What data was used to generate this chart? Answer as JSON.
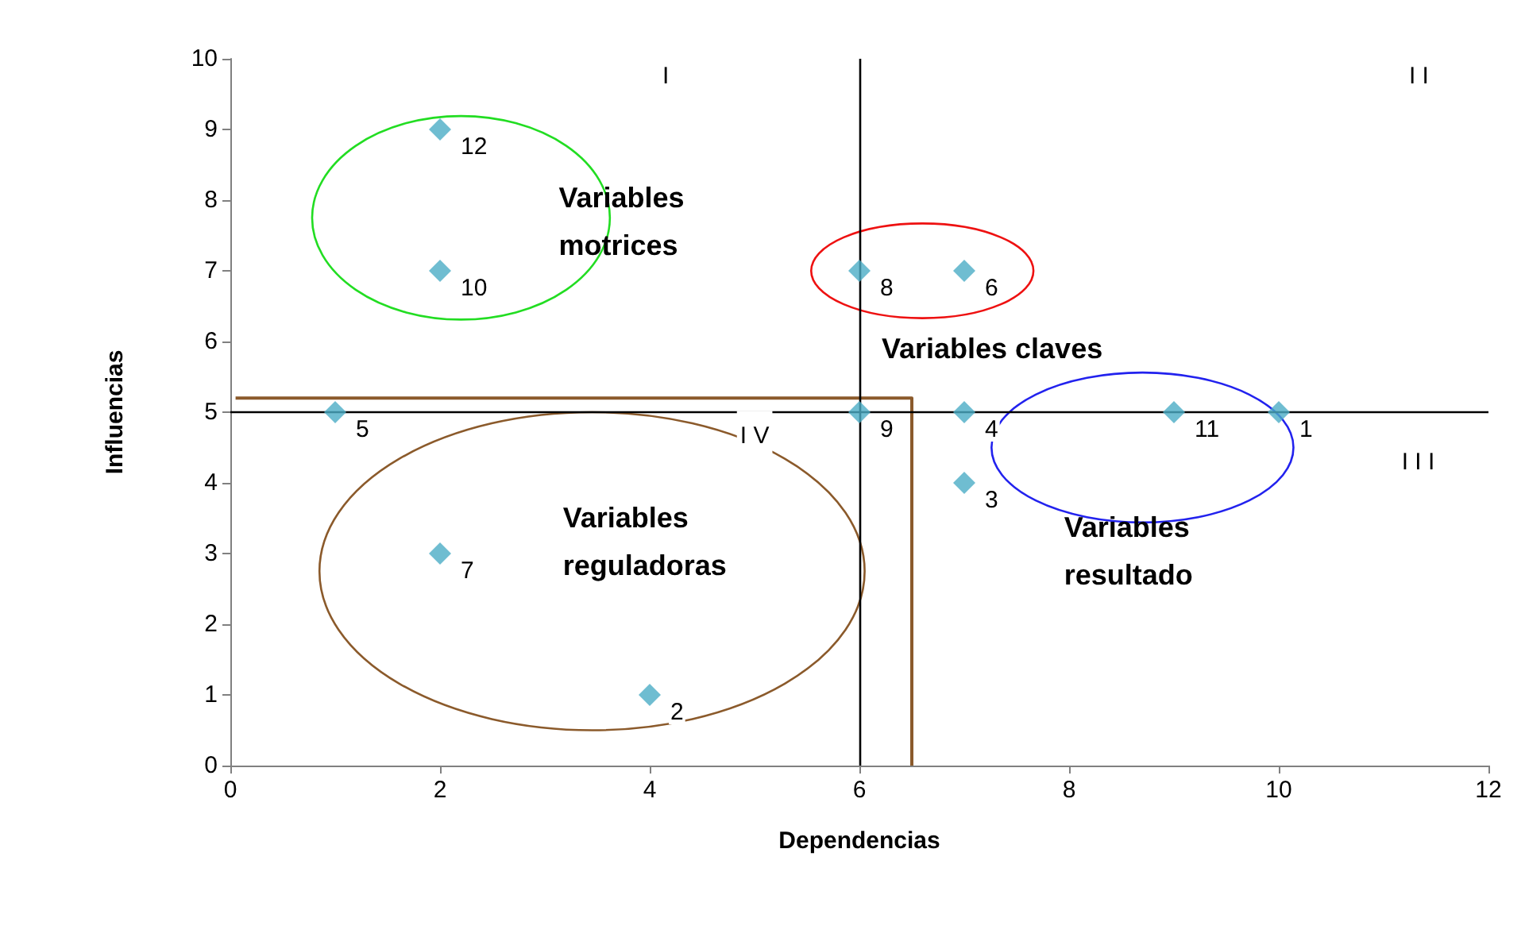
{
  "chart_data": {
    "type": "scatter",
    "xlabel": "Dependencias",
    "ylabel": "Influencias",
    "series": [
      {
        "color": "#4bacc6",
        "marker": "diamond",
        "x": [
          10,
          4,
          7,
          7,
          1,
          7,
          2,
          6,
          6,
          2,
          9,
          2
        ],
        "values": [
          5,
          1,
          4,
          5,
          5,
          7,
          3,
          7,
          5,
          7,
          5,
          9
        ]
      },
      {
        "type": "line",
        "color": "#8b5a2b",
        "marker": "none",
        "x": [
          0.05,
          6.5,
          6.5
        ],
        "values": [
          5.2,
          5.2,
          0
        ]
      }
    ],
    "grid": false,
    "xlim": [
      0,
      12
    ],
    "xticks": [
      0,
      2,
      4,
      6,
      8,
      10,
      12
    ],
    "ylim": [
      0,
      10
    ],
    "yticks": [
      0,
      1,
      2,
      3,
      4,
      5,
      6,
      7,
      8,
      9,
      10
    ],
    "ref_lines": [
      {
        "axis": "x",
        "value": 6,
        "color": "#000000"
      },
      {
        "axis": "y",
        "value": 5,
        "color": "#000000"
      }
    ],
    "annotations": [
      {
        "text": "1",
        "x": 10,
        "y": 5
      },
      {
        "text": "2",
        "x": 4,
        "y": 1
      },
      {
        "text": "3",
        "x": 7,
        "y": 4
      },
      {
        "text": "4",
        "x": 7,
        "y": 5
      },
      {
        "text": "5",
        "x": 1,
        "y": 5
      },
      {
        "text": "6",
        "x": 7,
        "y": 7
      },
      {
        "text": "7",
        "x": 2,
        "y": 3
      },
      {
        "text": "8",
        "x": 6,
        "y": 7
      },
      {
        "text": "9",
        "x": 6,
        "y": 5
      },
      {
        "text": "10",
        "x": 2,
        "y": 7
      },
      {
        "text": "11",
        "x": 9,
        "y": 5
      },
      {
        "text": "12",
        "x": 2,
        "y": 9
      },
      "I",
      "I I",
      "I I I",
      "I V",
      "Variables\nmotrices",
      "Variables claves",
      "Variables\nresultado",
      "Variables\nreguladoras"
    ]
  }
}
